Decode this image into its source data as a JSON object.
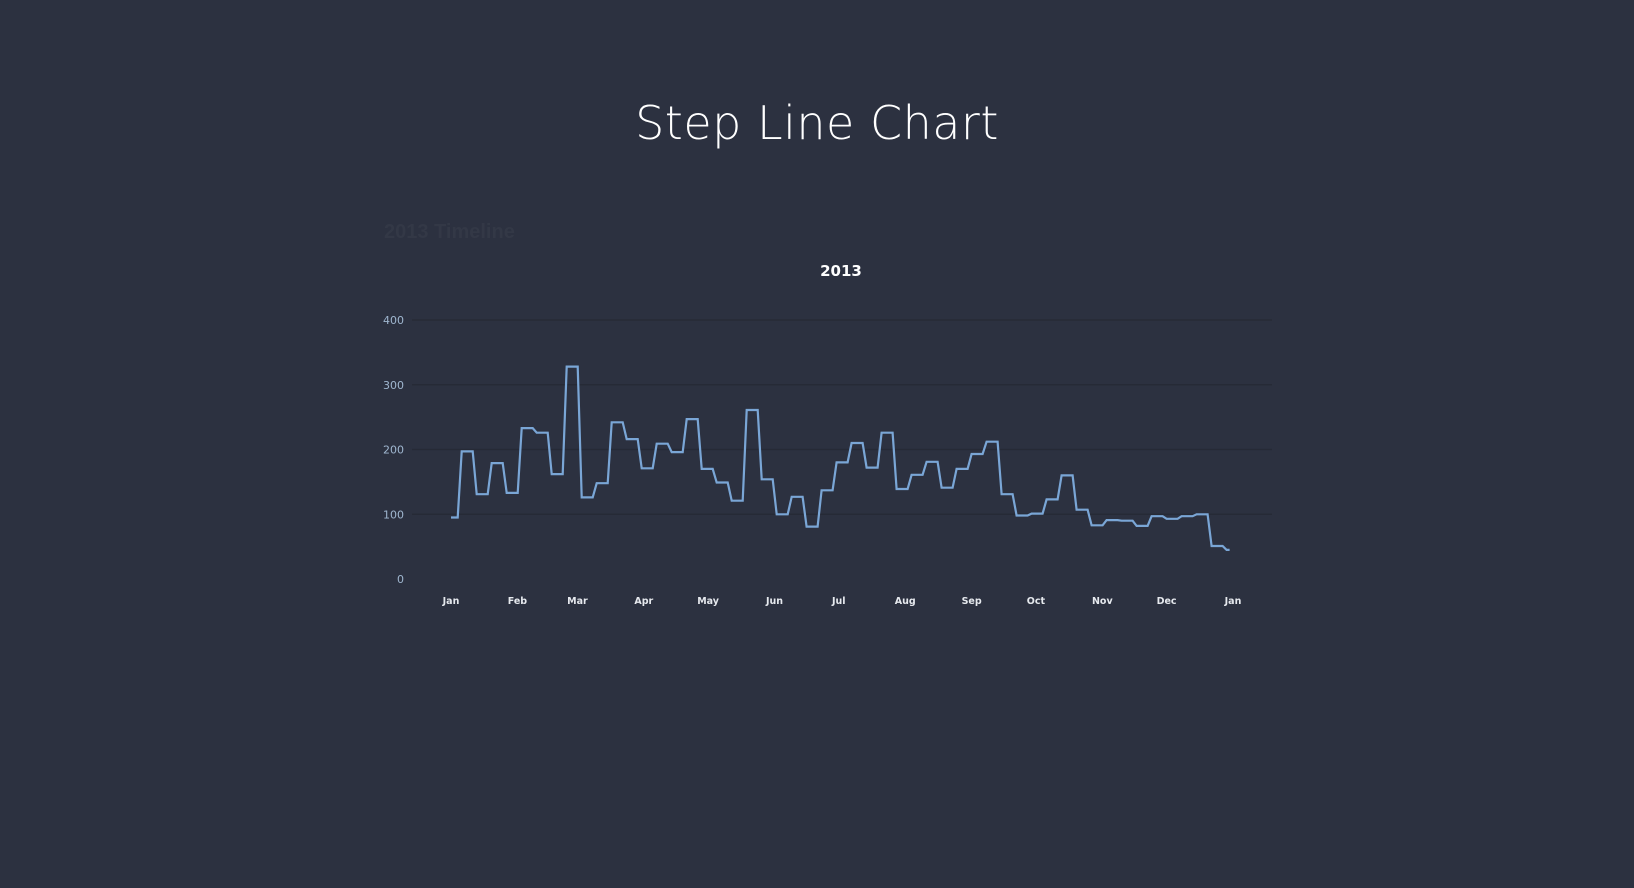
{
  "page": {
    "title": "Step Line Chart",
    "sheet_name": "2013 Timeline"
  },
  "colors": {
    "background": "#2c3140",
    "line": "#7aa6d6",
    "gridline": "#262a36"
  },
  "chart_data": {
    "type": "line",
    "interpolation": "step",
    "title": "2013",
    "xlabel": "",
    "ylabel": "",
    "ylim": [
      0,
      400
    ],
    "yticks": [
      0,
      100,
      200,
      300,
      400
    ],
    "grid": true,
    "xtick_labels": [
      "Jan",
      "Feb",
      "Mar",
      "Apr",
      "May",
      "Jun",
      "Jul",
      "Aug",
      "Sep",
      "Oct",
      "Nov",
      "Dec",
      "Jan"
    ],
    "x": [
      "2013-01-01",
      "2013-01-06",
      "2013-01-13",
      "2013-01-20",
      "2013-01-27",
      "2013-02-03",
      "2013-02-10",
      "2013-02-17",
      "2013-02-24",
      "2013-03-03",
      "2013-03-10",
      "2013-03-17",
      "2013-03-24",
      "2013-03-31",
      "2013-04-07",
      "2013-04-14",
      "2013-04-21",
      "2013-04-28",
      "2013-05-05",
      "2013-05-12",
      "2013-05-19",
      "2013-05-26",
      "2013-06-02",
      "2013-06-09",
      "2013-06-16",
      "2013-06-23",
      "2013-06-30",
      "2013-07-07",
      "2013-07-14",
      "2013-07-21",
      "2013-07-28",
      "2013-08-04",
      "2013-08-11",
      "2013-08-18",
      "2013-08-25",
      "2013-09-01",
      "2013-09-08",
      "2013-09-15",
      "2013-09-22",
      "2013-09-29",
      "2013-10-06",
      "2013-10-13",
      "2013-10-20",
      "2013-10-27",
      "2013-11-03",
      "2013-11-10",
      "2013-11-17",
      "2013-11-24",
      "2013-12-01",
      "2013-12-08",
      "2013-12-15",
      "2013-12-22",
      "2013-12-29"
    ],
    "series": [
      {
        "values": [
          95,
          197,
          131,
          179,
          133,
          233,
          226,
          162,
          328,
          126,
          148,
          242,
          216,
          171,
          209,
          196,
          247,
          170,
          149,
          121,
          261,
          154,
          100,
          127,
          81,
          137,
          180,
          210,
          172,
          226,
          139,
          161,
          181,
          141,
          170,
          193,
          212,
          131,
          98,
          101,
          123,
          160,
          107,
          83,
          91,
          90,
          82,
          97,
          93,
          97,
          100,
          51,
          45
        ]
      }
    ]
  }
}
